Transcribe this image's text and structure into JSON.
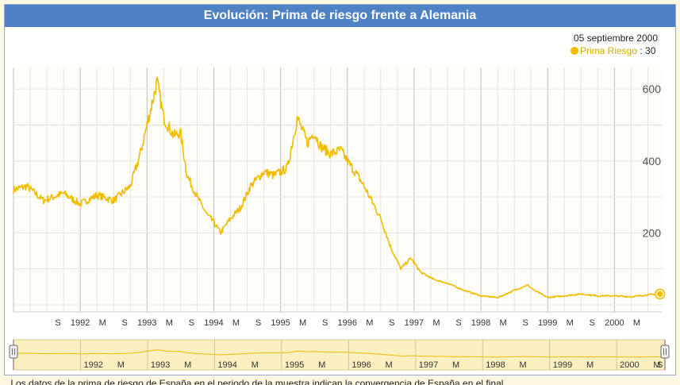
{
  "title": "Evolución: Prima de riesgo frente a Alemania",
  "tooltip": {
    "date": "05 septiembre 2000",
    "series": "Prima Riesgo",
    "separator": " : ",
    "value": "30"
  },
  "colors": {
    "line": "#efbc00",
    "title_bg": "#4f82c4",
    "grid": "#e3e3e3",
    "year_grid": "#bdbdbd",
    "nav_fill": "#fcefc0"
  },
  "bottom_text": "... Los datos de la prima de riesgo de España en el periodo de la muestra indican la convergencia de España en el final",
  "chart_data": {
    "type": "line",
    "title": "Evolución: Prima de riesgo frente a Alemania",
    "series": [
      {
        "name": "Prima Riesgo",
        "x": [
          1991.0,
          1991.2,
          1991.45,
          1991.75,
          1992.0,
          1992.25,
          1992.5,
          1992.75,
          1992.9,
          1993.05,
          1993.15,
          1993.25,
          1993.4,
          1993.5,
          1993.6,
          1993.75,
          1993.9,
          1994.0,
          1994.1,
          1994.25,
          1994.4,
          1994.55,
          1994.75,
          1994.9,
          1995.1,
          1995.25,
          1995.4,
          1995.5,
          1995.6,
          1995.75,
          1995.9,
          1996.0,
          1996.15,
          1996.25,
          1996.5,
          1996.65,
          1996.8,
          1996.95,
          1997.1,
          1997.3,
          1997.5,
          1997.75,
          1998.0,
          1998.25,
          1998.5,
          1998.7,
          1998.8,
          1999.0,
          1999.25,
          1999.5,
          1999.75,
          2000.0,
          2000.25,
          2000.5,
          2000.68
        ],
        "values": [
          320,
          330,
          290,
          310,
          280,
          305,
          290,
          330,
          420,
          540,
          620,
          520,
          470,
          480,
          360,
          300,
          250,
          230,
          200,
          240,
          270,
          330,
          370,
          360,
          380,
          520,
          450,
          480,
          440,
          420,
          430,
          400,
          360,
          330,
          240,
          160,
          100,
          130,
          90,
          70,
          60,
          40,
          25,
          20,
          40,
          55,
          40,
          20,
          25,
          30,
          25,
          25,
          22,
          28,
          30
        ]
      }
    ],
    "x_ticks": [
      "S",
      "1992",
      "M",
      "S",
      "1993",
      "M",
      "S",
      "1994",
      "M",
      "S",
      "1995",
      "M",
      "S",
      "1996",
      "M",
      "S",
      "1997",
      "M",
      "S",
      "1998",
      "M",
      "S",
      "1999",
      "M",
      "S",
      "2000",
      "M"
    ],
    "y_ticks": [
      "200",
      "400",
      "600"
    ],
    "navigator_ticks": [
      "1992",
      "M",
      "1993",
      "M",
      "1994",
      "M",
      "1995",
      "M",
      "1996",
      "M",
      "1997",
      "M",
      "1998",
      "M",
      "1999",
      "M",
      "2000",
      "M",
      "S"
    ],
    "xlim": [
      1991.0,
      2000.72
    ],
    "ylim": [
      -20,
      660
    ],
    "legend": "top-right"
  }
}
